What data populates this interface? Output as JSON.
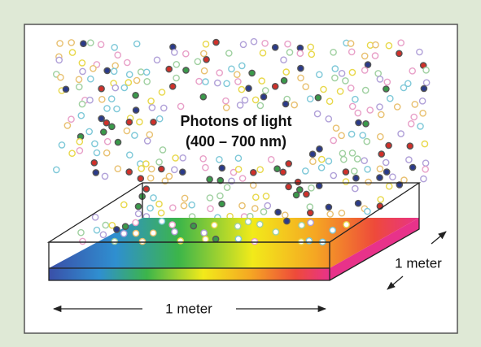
{
  "label": {
    "line1": "Photons of light",
    "line2": "(400 – 700 nm)"
  },
  "dimensions": {
    "width": "1 meter",
    "depth": "1 meter"
  }
}
